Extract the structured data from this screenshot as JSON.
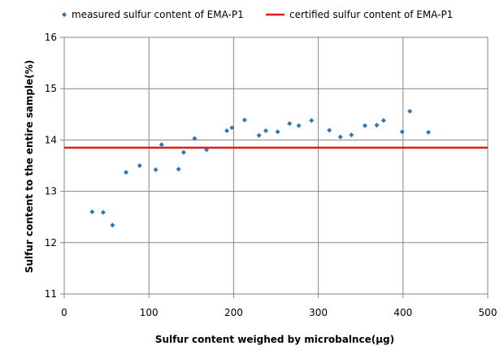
{
  "chart_data": {
    "type": "scatter",
    "title": "",
    "xlabel": "Sulfur content weighed by microbalnce(µg)",
    "ylabel": "Sulfur content to the entire sample(%)",
    "xlim": [
      0,
      500
    ],
    "ylim": [
      11,
      16
    ],
    "xticks": [
      0,
      100,
      200,
      300,
      400,
      500
    ],
    "yticks": [
      11,
      12,
      13,
      14,
      15,
      16
    ],
    "xtick_labels": [
      "0",
      "100",
      "200",
      "300",
      "400",
      "500"
    ],
    "ytick_labels": [
      "11",
      "12",
      "13",
      "14",
      "15",
      "16"
    ],
    "grid": {
      "x": true,
      "y": true,
      "color": "#868686"
    },
    "legend": {
      "placement": "top",
      "entries": [
        {
          "label": "measured sulfur content of EMA-P1",
          "marker": "diamond",
          "color": "#2E75B6"
        },
        {
          "label": "certified sulfur content of EMA-P1",
          "marker": "line",
          "color": "#E41A1C"
        }
      ]
    },
    "series": [
      {
        "name": "measured sulfur content of EMA-P1",
        "kind": "scatter",
        "color": "#2E75B6",
        "marker": "diamond",
        "points": [
          [
            33,
            12.6
          ],
          [
            46,
            12.59
          ],
          [
            57,
            12.34
          ],
          [
            73,
            13.37
          ],
          [
            89,
            13.5
          ],
          [
            108,
            13.42
          ],
          [
            115,
            13.91
          ],
          [
            135,
            13.43
          ],
          [
            141,
            13.76
          ],
          [
            154,
            14.03
          ],
          [
            168,
            13.81
          ],
          [
            192,
            14.18
          ],
          [
            198,
            14.24
          ],
          [
            213,
            14.39
          ],
          [
            230,
            14.09
          ],
          [
            238,
            14.18
          ],
          [
            252,
            14.16
          ],
          [
            266,
            14.32
          ],
          [
            277,
            14.28
          ],
          [
            292,
            14.38
          ],
          [
            313,
            14.19
          ],
          [
            326,
            14.06
          ],
          [
            339,
            14.1
          ],
          [
            355,
            14.28
          ],
          [
            369,
            14.29
          ],
          [
            377,
            14.38
          ],
          [
            399,
            14.16
          ],
          [
            408,
            14.56
          ],
          [
            430,
            14.15
          ]
        ]
      },
      {
        "name": "certified sulfur content of EMA-P1",
        "kind": "hline",
        "color": "#E41A1C",
        "y": 13.85
      }
    ]
  }
}
